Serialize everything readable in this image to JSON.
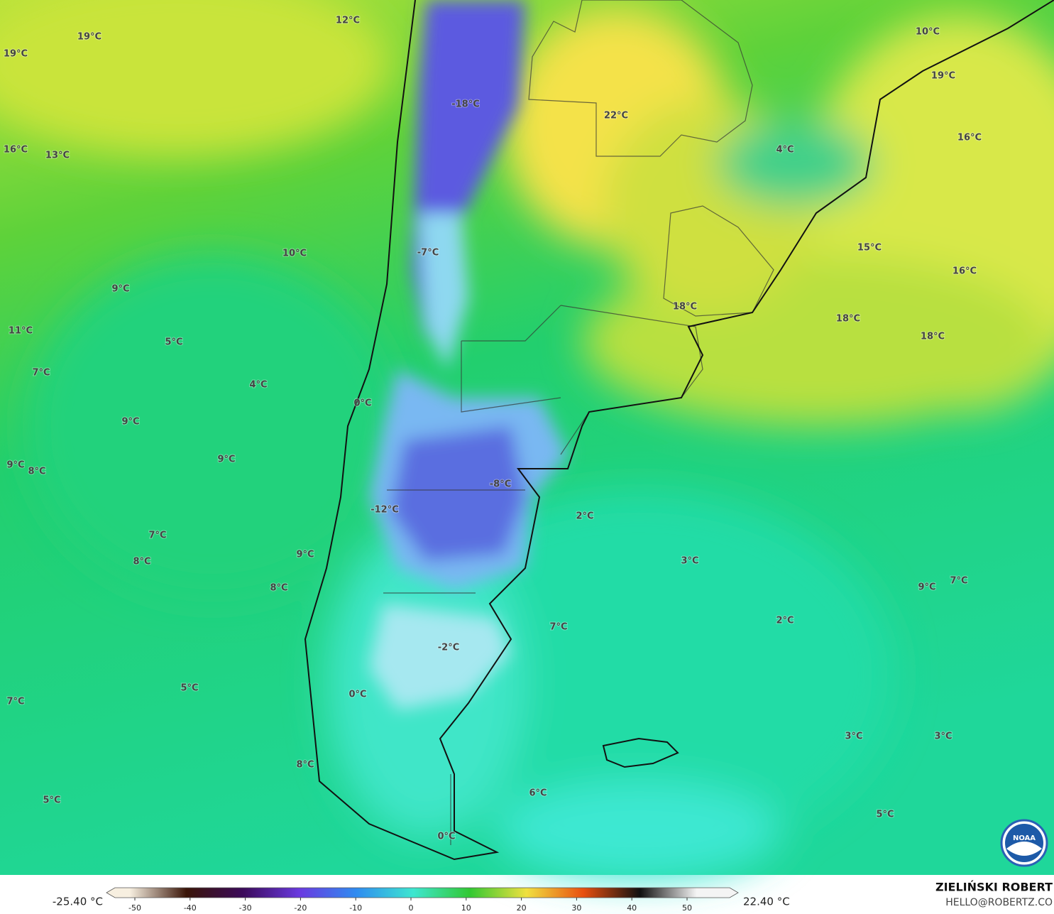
{
  "map": {
    "labels": [
      "12°C",
      "19°C",
      "19°C",
      "10°C",
      "19°C",
      "-18°C",
      "22°C",
      "16°C",
      "13°C",
      "4°C",
      "16°C",
      "15°C",
      "10°C",
      "-7°C",
      "16°C",
      "9°C",
      "18°C",
      "18°C",
      "11°C",
      "18°C",
      "5°C",
      "7°C",
      "4°C",
      "0°C",
      "9°C",
      "9°C",
      "9°C",
      "8°C",
      "-8°C",
      "-12°C",
      "2°C",
      "7°C",
      "9°C",
      "8°C",
      "3°C",
      "8°C",
      "9°C",
      "7°C",
      "7°C",
      "2°C",
      "-2°C",
      "5°C",
      "0°C",
      "7°C",
      "3°C",
      "3°C",
      "8°C",
      "6°C",
      "5°C",
      "5°C",
      "0°C"
    ]
  },
  "colorbar": {
    "ticks": [
      -50,
      -40,
      -30,
      -20,
      -10,
      0,
      10,
      20,
      30,
      40,
      50
    ],
    "colors": [
      "#f7efe0",
      "#3a1508",
      "#3b0a5a",
      "#6a3ae0",
      "#2f8cf0",
      "#3ee6d0",
      "#32c832",
      "#f0e040",
      "#e85010",
      "#101010",
      "#f4f4f4"
    ],
    "min_label": "-25.40 °C",
    "max_label": "22.40 °C"
  },
  "credit": {
    "name": "ZIELIŃSKI ROBERT",
    "email": "HELLO@ROBERTZ.CO"
  },
  "logo": "NOAA"
}
